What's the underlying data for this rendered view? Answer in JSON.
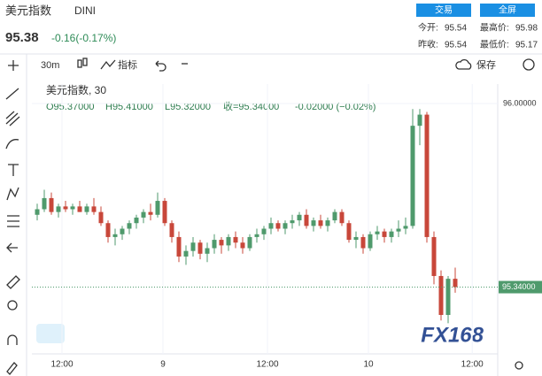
{
  "header": {
    "name": "美元指数",
    "code": "DINI",
    "price": "95.38",
    "change": "-0.16(-0.17%)",
    "buttons": [
      "交易",
      "全屏"
    ],
    "stats": [
      [
        "今开:",
        "95.54",
        "最高价:",
        "95.98"
      ],
      [
        "昨收:",
        "95.54",
        "最低价:",
        "95.17"
      ]
    ]
  },
  "toolbar": {
    "interval": "30m",
    "indicators": "指标",
    "save": "保存"
  },
  "legend": {
    "title": "美元指数, 30",
    "open": "O95.37000",
    "high": "H95.41000",
    "low": "L95.32000",
    "close": "收=95.34000",
    "change": "-0.02000 (−0.02%)"
  },
  "watermark": "FX168",
  "chart_data": {
    "type": "candlestick",
    "up_color": "#4f9a6c",
    "down_color": "#c8473a",
    "x": [
      0,
      1,
      2,
      3,
      4,
      5,
      6,
      7,
      8,
      9,
      10,
      11,
      12,
      13,
      14,
      15,
      16,
      17,
      18,
      19,
      20,
      21,
      22,
      23,
      24,
      25,
      26,
      27,
      28,
      29,
      30,
      31,
      32,
      33,
      34,
      35,
      36,
      37,
      38,
      39,
      40,
      41,
      42,
      43,
      44,
      45,
      46,
      47,
      48,
      49,
      50,
      51,
      52,
      53,
      54,
      55,
      56,
      57,
      58,
      59
    ],
    "open": [
      95.6,
      95.62,
      95.66,
      95.61,
      95.63,
      95.62,
      95.63,
      95.61,
      95.63,
      95.61,
      95.57,
      95.52,
      95.53,
      95.55,
      95.57,
      95.59,
      95.61,
      95.6,
      95.65,
      95.57,
      95.52,
      95.45,
      95.47,
      95.5,
      95.46,
      95.48,
      95.51,
      95.49,
      95.52,
      95.5,
      95.48,
      95.52,
      95.53,
      95.55,
      95.57,
      95.55,
      95.57,
      95.58,
      95.6,
      95.56,
      95.58,
      95.56,
      95.58,
      95.61,
      95.57,
      95.51,
      95.52,
      95.48,
      95.53,
      95.54,
      95.52,
      95.54,
      95.55,
      95.56,
      95.92,
      95.96,
      95.52,
      95.38,
      95.24,
      95.37
    ],
    "high": [
      95.64,
      95.69,
      95.68,
      95.64,
      95.65,
      95.64,
      95.65,
      95.64,
      95.66,
      95.63,
      95.58,
      95.55,
      95.56,
      95.58,
      95.6,
      95.62,
      95.64,
      95.68,
      95.66,
      95.58,
      95.54,
      95.49,
      95.52,
      95.51,
      95.5,
      95.53,
      95.52,
      95.53,
      95.54,
      95.52,
      95.53,
      95.55,
      95.56,
      95.59,
      95.58,
      95.58,
      95.6,
      95.61,
      95.62,
      95.59,
      95.6,
      95.59,
      95.62,
      95.62,
      95.58,
      95.54,
      95.53,
      95.54,
      95.56,
      95.55,
      95.55,
      95.58,
      95.59,
      95.98,
      95.98,
      95.97,
      95.54,
      95.4,
      95.38,
      95.41
    ],
    "low": [
      95.58,
      95.61,
      95.6,
      95.59,
      95.61,
      95.6,
      95.61,
      95.6,
      95.6,
      95.56,
      95.5,
      95.49,
      95.51,
      95.53,
      95.55,
      95.57,
      95.58,
      95.59,
      95.56,
      95.5,
      95.43,
      95.42,
      95.45,
      95.44,
      95.43,
      95.46,
      95.46,
      95.47,
      95.48,
      95.46,
      95.47,
      95.5,
      95.51,
      95.53,
      95.54,
      95.53,
      95.55,
      95.56,
      95.55,
      95.54,
      95.55,
      95.54,
      95.57,
      95.56,
      95.5,
      95.48,
      95.46,
      95.47,
      95.51,
      95.5,
      95.5,
      95.52,
      95.53,
      95.55,
      95.85,
      95.5,
      95.35,
      95.22,
      95.21,
      95.32
    ],
    "close": [
      95.62,
      95.66,
      95.61,
      95.63,
      95.62,
      95.63,
      95.61,
      95.63,
      95.61,
      95.57,
      95.52,
      95.53,
      95.55,
      95.57,
      95.59,
      95.61,
      95.6,
      95.65,
      95.57,
      95.52,
      95.45,
      95.47,
      95.5,
      95.46,
      95.48,
      95.51,
      95.49,
      95.52,
      95.5,
      95.48,
      95.52,
      95.53,
      95.55,
      95.57,
      95.55,
      95.57,
      95.58,
      95.6,
      95.56,
      95.58,
      95.56,
      95.58,
      95.61,
      95.57,
      95.51,
      95.52,
      95.48,
      95.53,
      95.54,
      95.52,
      95.54,
      95.55,
      95.56,
      95.92,
      95.96,
      95.52,
      95.38,
      95.24,
      95.37,
      95.34
    ],
    "xlim": [
      -0.75,
      65
    ],
    "ylim": [
      95.1,
      96.07
    ],
    "xticks": [
      {
        "value": 3.5,
        "label": "12:00"
      },
      {
        "value": 17.75,
        "label": "9"
      },
      {
        "value": 32.5,
        "label": "12:00"
      },
      {
        "value": 46.75,
        "label": "10"
      },
      {
        "value": 61.4,
        "label": "12:00"
      }
    ],
    "yticks": [
      {
        "value": 96,
        "label": "96.00000"
      }
    ],
    "last_price": {
      "value": 95.34,
      "label": "95.34000"
    }
  }
}
